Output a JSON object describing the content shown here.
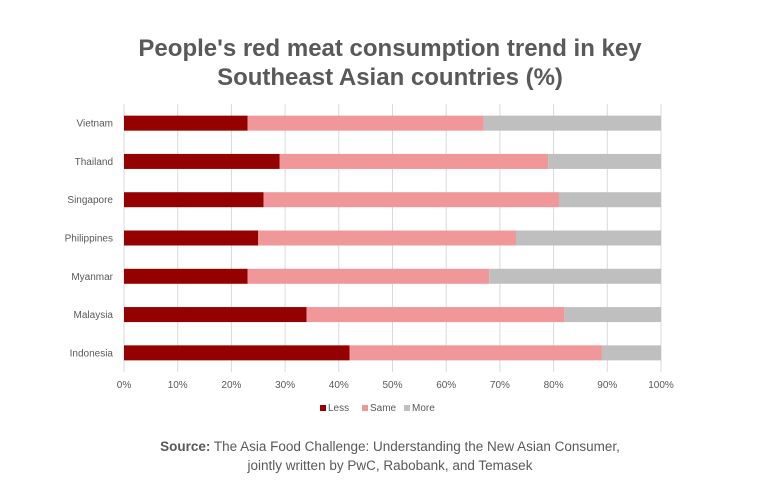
{
  "chart_data": {
    "type": "bar",
    "orientation": "horizontal",
    "stacked": "percent",
    "title_line1": "People's red meat consumption trend in key",
    "title_line2": "Southeast Asian countries (%)",
    "categories": [
      "Vietnam",
      "Thailand",
      "Singapore",
      "Philippines",
      "Myanmar",
      "Malaysia",
      "Indonesia"
    ],
    "series": [
      {
        "name": "Less",
        "color": "#950000",
        "values": [
          23,
          29,
          26,
          25,
          23,
          34,
          42
        ]
      },
      {
        "name": "Same",
        "color": "#F0979A",
        "values": [
          44,
          50,
          55,
          48,
          45,
          48,
          47
        ]
      },
      {
        "name": "More",
        "color": "#BFBFBF",
        "values": [
          33,
          21,
          19,
          27,
          32,
          18,
          11
        ]
      }
    ],
    "xlim": [
      0,
      100
    ],
    "xticks": [
      "0%",
      "10%",
      "20%",
      "30%",
      "40%",
      "50%",
      "60%",
      "70%",
      "80%",
      "90%",
      "100%"
    ],
    "grid": true,
    "legend_placement": "bottom"
  },
  "source": {
    "label": "Source:",
    "line1": " The Asia Food Challenge: Understanding the New Asian Consumer,",
    "line2": "jointly written by PwC, Rabobank, and Temasek"
  }
}
